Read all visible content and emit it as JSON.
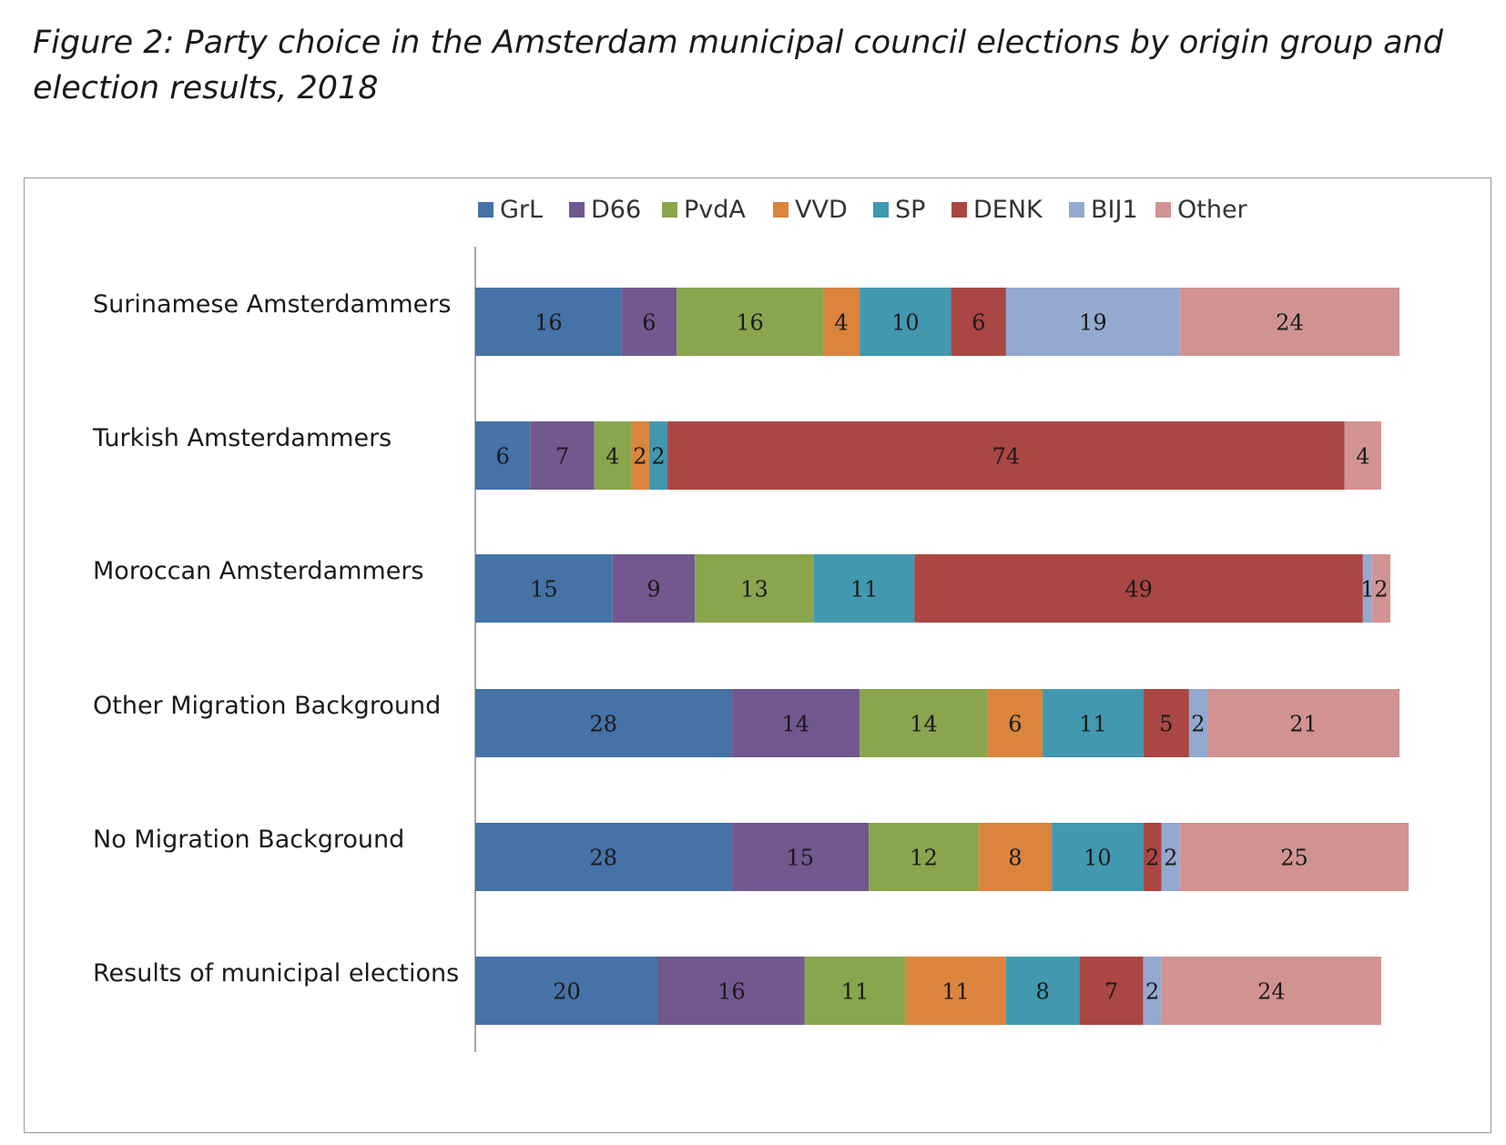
{
  "figure": {
    "title": "Figure 2: Party choice in the Amsterdam municipal council elections by origin group and election results, 2018"
  },
  "chart_data": {
    "type": "bar",
    "orientation": "horizontal",
    "stacked": true,
    "title": "Figure 2: Party choice in the Amsterdam municipal council elections by origin group and election results, 2018",
    "xlabel": "",
    "ylabel": "",
    "xlim": [
      0,
      100
    ],
    "grid": false,
    "legend_position": "top",
    "categories": [
      "Surinamese Amsterdammers",
      "Turkish Amsterdammers",
      "Moroccan Amsterdammers",
      "Other Migration Background",
      "No Migration Background",
      "Results of municipal elections"
    ],
    "series": [
      {
        "name": "GrL",
        "color": "#4572A7",
        "values": [
          16,
          6,
          15,
          28,
          28,
          20
        ]
      },
      {
        "name": "D66",
        "color": "#71588F",
        "values": [
          6,
          7,
          9,
          14,
          15,
          16
        ]
      },
      {
        "name": "PvdA",
        "color": "#89A54E",
        "values": [
          16,
          4,
          13,
          14,
          12,
          11
        ]
      },
      {
        "name": "VVD",
        "color": "#DB843D",
        "values": [
          4,
          2,
          0,
          6,
          8,
          11
        ]
      },
      {
        "name": "SP",
        "color": "#4198AF",
        "values": [
          10,
          2,
          11,
          11,
          10,
          8
        ]
      },
      {
        "name": "DENK",
        "color": "#AA4643",
        "values": [
          6,
          74,
          49,
          5,
          2,
          7
        ]
      },
      {
        "name": "BIJ1",
        "color": "#93A9CF",
        "values": [
          19,
          0,
          1,
          2,
          2,
          2
        ]
      },
      {
        "name": "Other",
        "color": "#D19392",
        "values": [
          24,
          4,
          2,
          21,
          25,
          24
        ]
      }
    ]
  }
}
